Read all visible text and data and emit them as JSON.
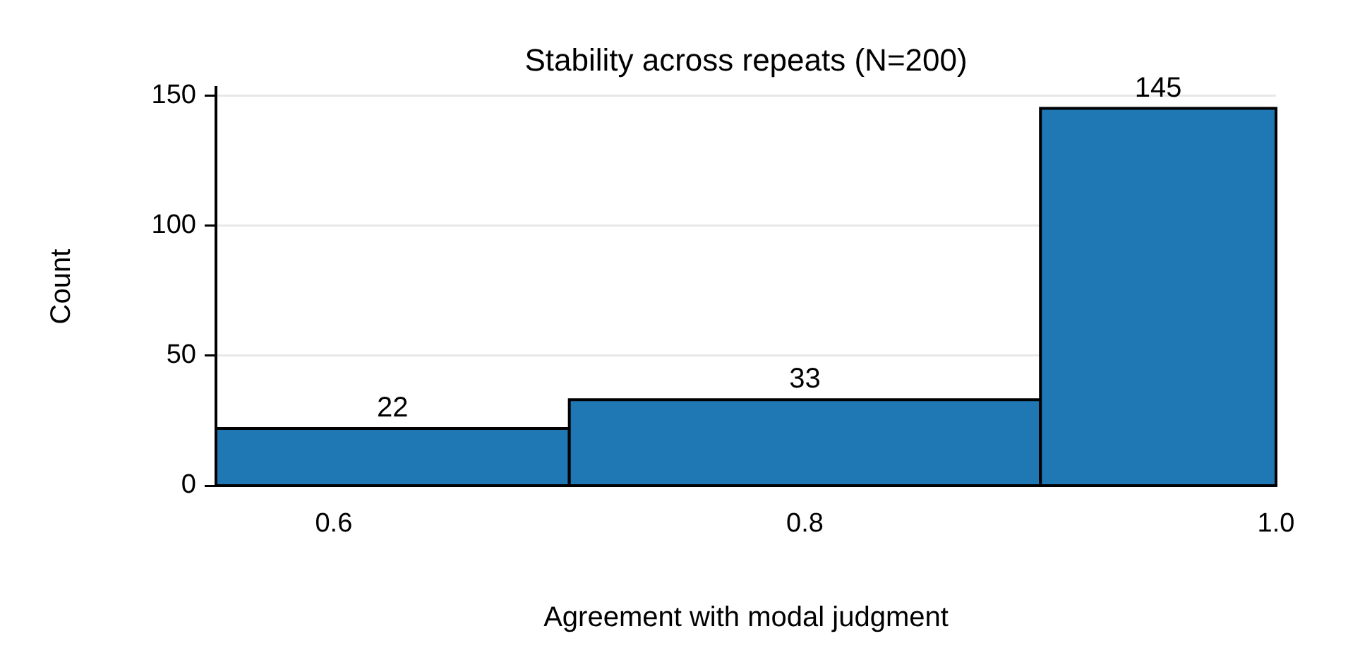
{
  "chart_data": {
    "type": "histogram",
    "title": "Stability across repeats (N=200)",
    "xlabel": "Agreement with modal judgment",
    "ylabel": "Count",
    "bins": [
      0.55,
      0.7,
      0.9,
      1.0
    ],
    "values": [
      22,
      33,
      145
    ],
    "color": "#1f77b4",
    "xlim": [
      0.55,
      1.0
    ],
    "xticks": [
      {
        "value": 0.6,
        "label": "0.6"
      },
      {
        "value": 0.8,
        "label": "0.8"
      },
      {
        "value": 1.0,
        "label": "1.0"
      }
    ],
    "ylim": [
      0,
      153
    ],
    "yticks": [
      0,
      50,
      100,
      150
    ],
    "grid": "y",
    "data_labels": true,
    "legend": false
  }
}
